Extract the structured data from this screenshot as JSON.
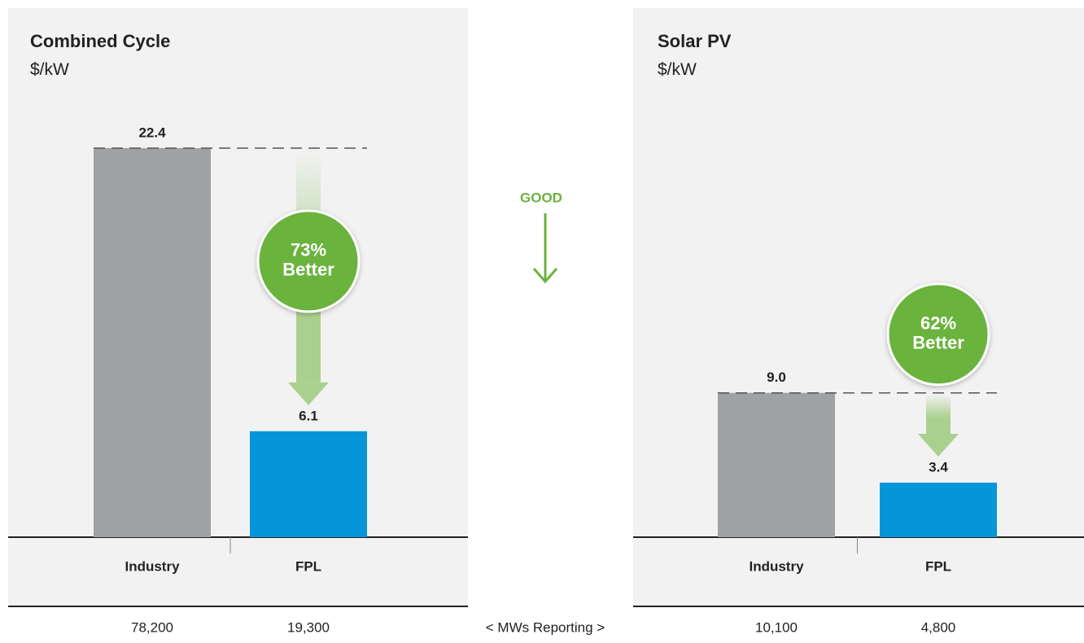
{
  "chart_data": [
    {
      "type": "bar",
      "title": "Combined Cycle",
      "subtitle": "$/kW",
      "categories": [
        "Industry",
        "FPL"
      ],
      "values": [
        22.4,
        6.1
      ],
      "colors": [
        "#a0a1a4",
        "#0795d9"
      ],
      "annotation": [
        "73%",
        "Better"
      ],
      "mws_reporting": {
        "values": [
          78200,
          19300
        ],
        "value_labels": [
          "78,200",
          "19,300"
        ]
      }
    },
    {
      "type": "bar",
      "title": "Solar PV",
      "subtitle": "$/kW",
      "categories": [
        "Industry",
        "FPL"
      ],
      "values": [
        9.0,
        3.4
      ],
      "value_labels": [
        "9.0",
        "3.4"
      ],
      "colors": [
        "#a0a1a4",
        "#0795d9"
      ],
      "annotation": [
        "62%",
        "Better"
      ],
      "mws_reporting": {
        "values": [
          10100,
          4800
        ],
        "value_labels": [
          "10,100",
          "4,800"
        ]
      }
    }
  ],
  "center": {
    "label": "GOOD",
    "footer": "< MWs Reporting >"
  }
}
